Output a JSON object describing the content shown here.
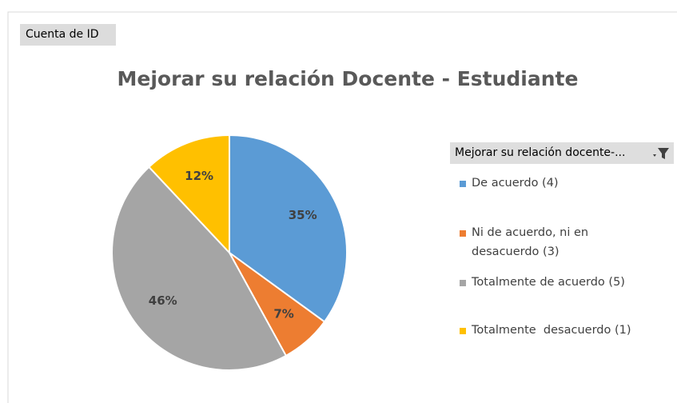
{
  "chart_data": {
    "type": "pie",
    "field_button": "Cuenta de ID",
    "title": "Mejorar su relación Docente - Estudiante",
    "legend_title": "Mejorar su relación docente-...",
    "categories": [
      "De acuerdo (4)",
      "Ni de acuerdo, ni en desacuerdo (3)",
      "Totalmente de acuerdo (5)",
      "Totalmente  desacuerdo (1)"
    ],
    "values": [
      35,
      7,
      46,
      12
    ],
    "value_labels": [
      "35%",
      "7%",
      "46%",
      "12%"
    ],
    "colors": [
      "#5b9bd5",
      "#ed7d31",
      "#a5a5a5",
      "#ffc000"
    ],
    "legend": "right"
  }
}
